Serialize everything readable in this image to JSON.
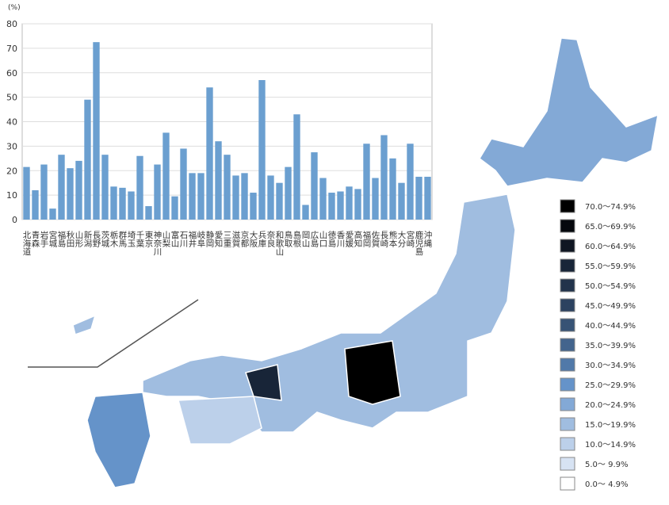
{
  "chart_data": {
    "type": "bar",
    "y_unit": "(%)",
    "categories": [
      "北海道",
      "青森",
      "岩手",
      "宮城",
      "福島",
      "秋田",
      "山形",
      "新潟",
      "長野",
      "茨城",
      "栃木",
      "群馬",
      "埼玉",
      "千葉",
      "東京",
      "神奈川",
      "山梨",
      "富山",
      "石川",
      "福井",
      "岐阜",
      "静岡",
      "愛知",
      "三重",
      "滋賀",
      "京都",
      "大阪",
      "兵庫",
      "奈良",
      "和歌山",
      "鳥取",
      "島根",
      "岡山",
      "広島",
      "山口",
      "徳島",
      "香川",
      "愛媛",
      "高知",
      "福岡",
      "佐賀",
      "長崎",
      "熊本",
      "大分",
      "宮崎",
      "鹿児島",
      "沖縄"
    ],
    "values": [
      21.5,
      12,
      22.5,
      4.5,
      26.5,
      21,
      24,
      49,
      72.5,
      26.5,
      13.5,
      13,
      11.5,
      26,
      5.5,
      22.5,
      35.5,
      9.5,
      29,
      19,
      19,
      54,
      32,
      26.5,
      18,
      19,
      11,
      57,
      18,
      15,
      21.5,
      43,
      6,
      27.5,
      17,
      11,
      11.5,
      13.5,
      12.5,
      31,
      17,
      34.5,
      25,
      15,
      31,
      17.5,
      17.5
    ],
    "color": "#6b9fd0",
    "ylim": [
      0,
      80
    ],
    "yticks": [
      0,
      10,
      20,
      30,
      40,
      50,
      60,
      70,
      80
    ],
    "grid": true,
    "legend": [
      {
        "label": "70.0～74.9%",
        "color": "#000000"
      },
      {
        "label": "65.0～69.9%",
        "color": "#05080d"
      },
      {
        "label": "60.0～64.9%",
        "color": "#0f1622"
      },
      {
        "label": "55.0～59.9%",
        "color": "#182538"
      },
      {
        "label": "50.0～54.9%",
        "color": "#22334b"
      },
      {
        "label": "45.0～49.9%",
        "color": "#2c4260"
      },
      {
        "label": "40.0～44.9%",
        "color": "#375375"
      },
      {
        "label": "35.0～39.9%",
        "color": "#43648d"
      },
      {
        "label": "30.0～34.9%",
        "color": "#5179a9"
      },
      {
        "label": "25.0～29.9%",
        "color": "#6593c9"
      },
      {
        "label": "20.0～24.9%",
        "color": "#83a9d6"
      },
      {
        "label": "15.0～19.9%",
        "color": "#a0bde0"
      },
      {
        "label": "10.0～14.9%",
        "color": "#bcd0ea"
      },
      {
        "label": "5.0～ 9.9%",
        "color": "#d7e3f3"
      },
      {
        "label": "0.0～ 4.9%",
        "color": "#ffffff"
      }
    ]
  }
}
